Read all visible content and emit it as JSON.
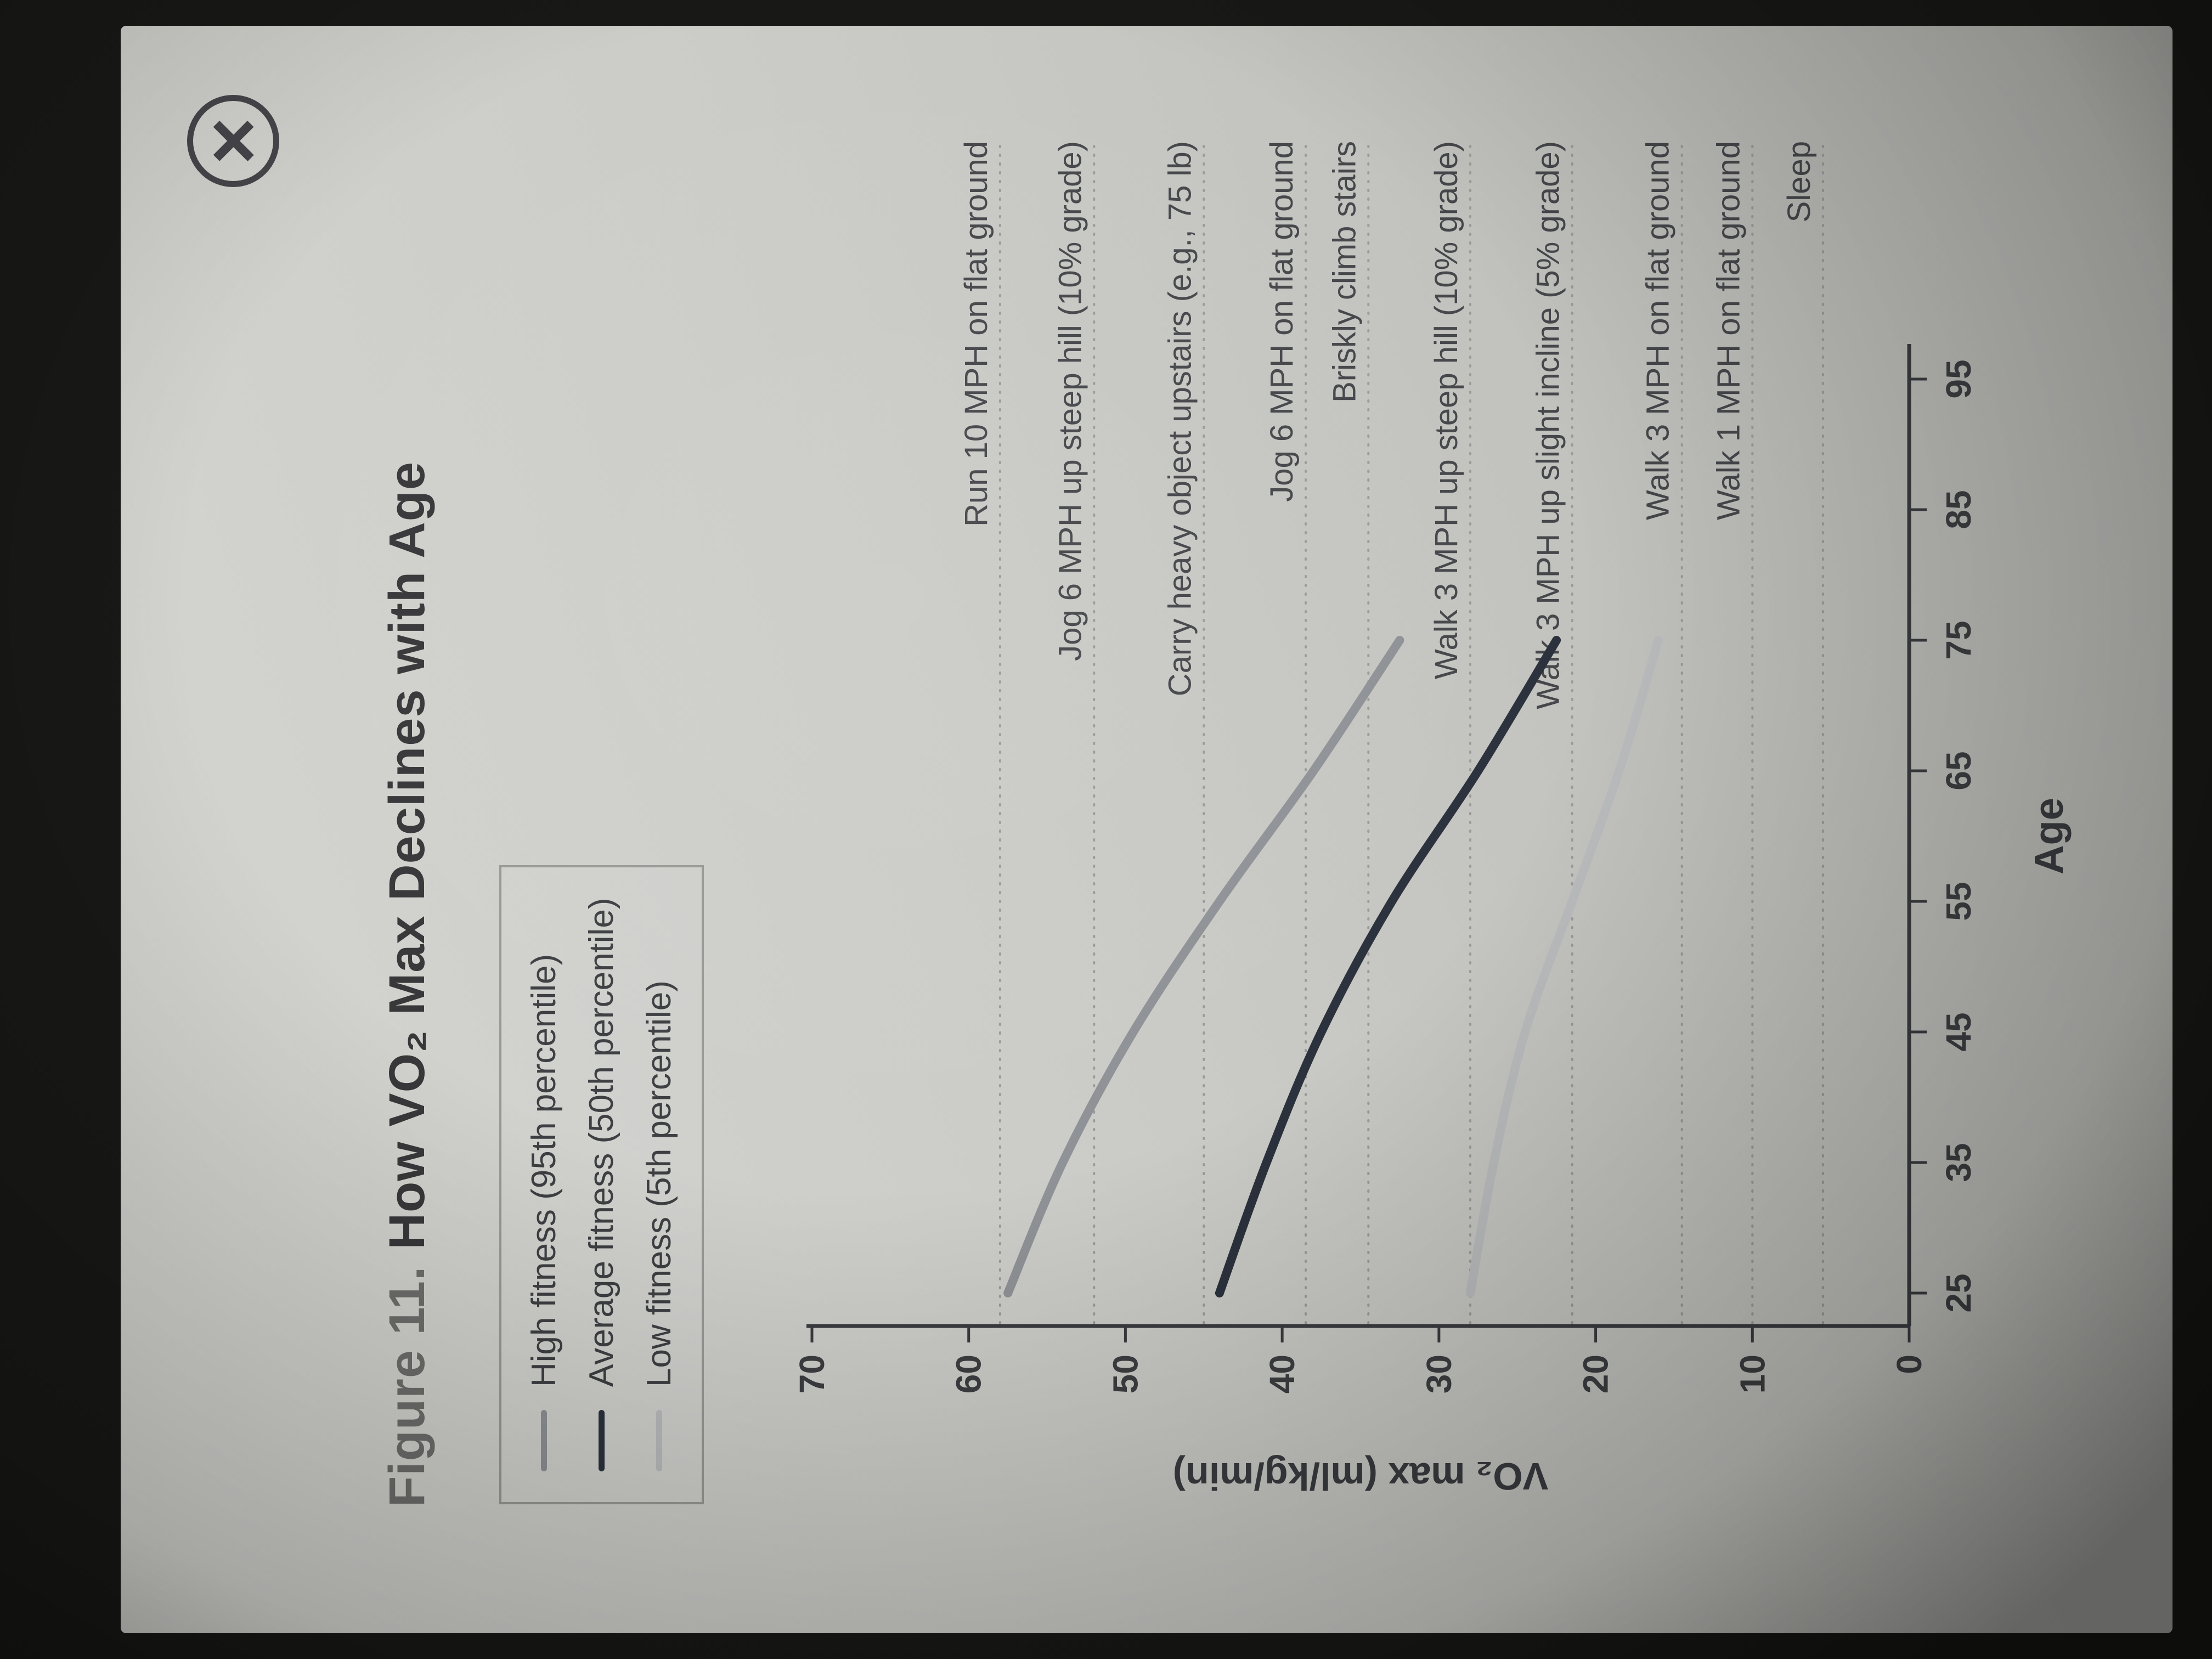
{
  "window": {
    "close_label": "×"
  },
  "figure": {
    "title_prefix": "Figure 11.",
    "title_main": "How VO₂ Max Declines with Age"
  },
  "legend": {
    "items": [
      {
        "label": "High fitness (95th percentile)",
        "color": "#8f9296"
      },
      {
        "label": "Average fitness (50th percentile)",
        "color": "#2c323d"
      },
      {
        "label": "Low fitness (5th percentile)",
        "color": "#babcbe"
      }
    ]
  },
  "chart_data": {
    "type": "line",
    "title": "How VO₂ Max Declines with Age",
    "xlabel": "Age",
    "ylabel": "VO₂ max (ml/kg/min)",
    "x_ticks": [
      25,
      35,
      45,
      55,
      65,
      75,
      85,
      95
    ],
    "y_ticks": [
      0,
      10,
      20,
      30,
      40,
      50,
      60,
      70
    ],
    "xlim": [
      25,
      95
    ],
    "ylim": [
      0,
      70
    ],
    "grid": "off",
    "legend_position": "top-left",
    "series": [
      {
        "name": "High fitness (95th percentile)",
        "color": "#8f9296",
        "x": [
          25,
          35,
          45,
          55,
          65,
          75
        ],
        "y": [
          57.5,
          54,
          49.5,
          44,
          38,
          32.5
        ]
      },
      {
        "name": "Average fitness (50th percentile)",
        "color": "#2c323d",
        "x": [
          25,
          35,
          45,
          55,
          65,
          75
        ],
        "y": [
          44,
          41,
          37.5,
          33,
          27.5,
          22.5
        ]
      },
      {
        "name": "Low fitness (5th percentile)",
        "color": "#babcbe",
        "x": [
          25,
          35,
          45,
          55,
          65,
          75
        ],
        "y": [
          28,
          26.5,
          24.5,
          21.5,
          18.5,
          16
        ]
      }
    ],
    "reference_lines": [
      {
        "label": "Run 10 MPH on flat ground",
        "value": 58
      },
      {
        "label": "Jog 6 MPH up steep hill (10% grade)",
        "value": 52
      },
      {
        "label": "Carry heavy object upstairs (e.g., 75 lb)",
        "value": 45
      },
      {
        "label": "Jog 6 MPH on flat ground",
        "value": 38.5
      },
      {
        "label": "Briskly climb stairs",
        "value": 34.5
      },
      {
        "label": "Walk 3 MPH up steep hill (10% grade)",
        "value": 28
      },
      {
        "label": "Walk 3 MPH up slight incline (5% grade)",
        "value": 21.5
      },
      {
        "label": "Walk 3 MPH on flat ground",
        "value": 14.5
      },
      {
        "label": "Walk 1 MPH on flat ground",
        "value": 10
      },
      {
        "label": "Sleep",
        "value": 5.5
      }
    ]
  }
}
